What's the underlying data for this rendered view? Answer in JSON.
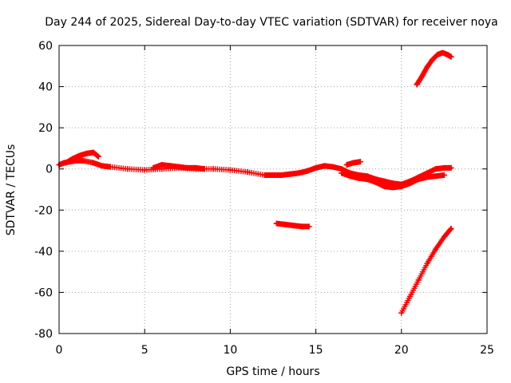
{
  "chart_data": {
    "type": "scatter",
    "title": "Day 244 of 2025, Sidereal Day-to-day VTEC variation (SDTVAR) for receiver noya",
    "xlabel": "GPS time / hours",
    "ylabel": "SDTVAR / TECUs",
    "xlim": [
      0,
      25
    ],
    "ylim": [
      -80,
      60
    ],
    "xticks": [
      0,
      5,
      10,
      15,
      20,
      25
    ],
    "yticks": [
      -80,
      -60,
      -40,
      -20,
      0,
      20,
      40,
      60
    ],
    "xtick_labels": [
      "0",
      "5",
      "10",
      "15",
      "20",
      "25"
    ],
    "ytick_labels": [
      "-80",
      "-60",
      "-40",
      "-20",
      "0",
      "20",
      "40",
      "60"
    ],
    "grid": true,
    "marker": "plus",
    "series": [
      {
        "name": "main-track",
        "color": "#ff0000",
        "x": [
          0.0,
          0.3,
          0.6,
          1.0,
          1.4,
          2.0,
          2.5,
          3.0,
          4.0,
          5.0,
          6.0,
          7.0,
          8.0,
          9.0,
          10.0,
          11.0,
          12.0,
          12.5,
          13.0,
          13.5,
          14.0,
          14.5,
          15.0,
          15.5,
          16.0,
          16.5,
          17.0,
          17.5,
          18.0,
          18.5,
          19.0,
          19.5,
          20.0,
          20.5,
          21.0,
          21.5,
          22.0,
          22.5,
          22.9
        ],
        "y": [
          2,
          3,
          3.5,
          4,
          4,
          3,
          1.5,
          1,
          0,
          -0.5,
          0,
          0.5,
          0,
          0,
          -0.5,
          -1.5,
          -3,
          -3,
          -3,
          -2.5,
          -2,
          -1,
          0.5,
          1.5,
          1,
          0,
          -2,
          -3,
          -3.5,
          -5,
          -6,
          -7,
          -7.5,
          -6,
          -4,
          -2,
          0,
          0.5,
          0.5
        ]
      },
      {
        "name": "early-upper-track",
        "color": "#ff0000",
        "x": [
          0.4,
          0.8,
          1.2,
          1.6,
          2.0,
          2.3
        ],
        "y": [
          3,
          5,
          6.5,
          7.5,
          8,
          6
        ]
      },
      {
        "name": "mid-wave-track",
        "color": "#ff0000",
        "x": [
          5.5,
          6.0,
          6.5,
          7.0,
          7.5,
          8.0,
          8.5
        ],
        "y": [
          0.5,
          2,
          1.5,
          1,
          0.5,
          0.5,
          0
        ]
      },
      {
        "name": "evening-lower-track",
        "color": "#ff0000",
        "x": [
          16.5,
          17.0,
          17.5,
          18.0,
          18.5,
          19.0,
          19.5,
          20.0,
          20.5,
          21.0,
          21.5,
          22.0,
          22.5
        ],
        "y": [
          -2,
          -3.5,
          -4.5,
          -5,
          -6.5,
          -8.5,
          -9,
          -8.5,
          -7,
          -5,
          -4,
          -3.5,
          -3
        ]
      },
      {
        "name": "evening-upper-track",
        "color": "#ff0000",
        "x": [
          16.8,
          17.2,
          17.6
        ],
        "y": [
          2,
          3,
          3.5
        ]
      },
      {
        "name": "isolated-segment",
        "color": "#ff0000",
        "x": [
          12.7,
          13.2,
          13.7,
          14.2,
          14.6
        ],
        "y": [
          -26.5,
          -27,
          -27.5,
          -28,
          -28
        ]
      },
      {
        "name": "high-arc",
        "color": "#ff0000",
        "x": [
          20.9,
          21.2,
          21.5,
          21.8,
          22.1,
          22.4,
          22.7,
          22.9
        ],
        "y": [
          41,
          45,
          49.5,
          53,
          55.5,
          56.5,
          55.5,
          54.5
        ]
      },
      {
        "name": "descending-line",
        "color": "#ff0000",
        "x": [
          20.0,
          20.5,
          21.0,
          21.5,
          22.0,
          22.5,
          22.9
        ],
        "y": [
          -70,
          -62,
          -54,
          -46,
          -39,
          -33,
          -29
        ]
      }
    ]
  }
}
